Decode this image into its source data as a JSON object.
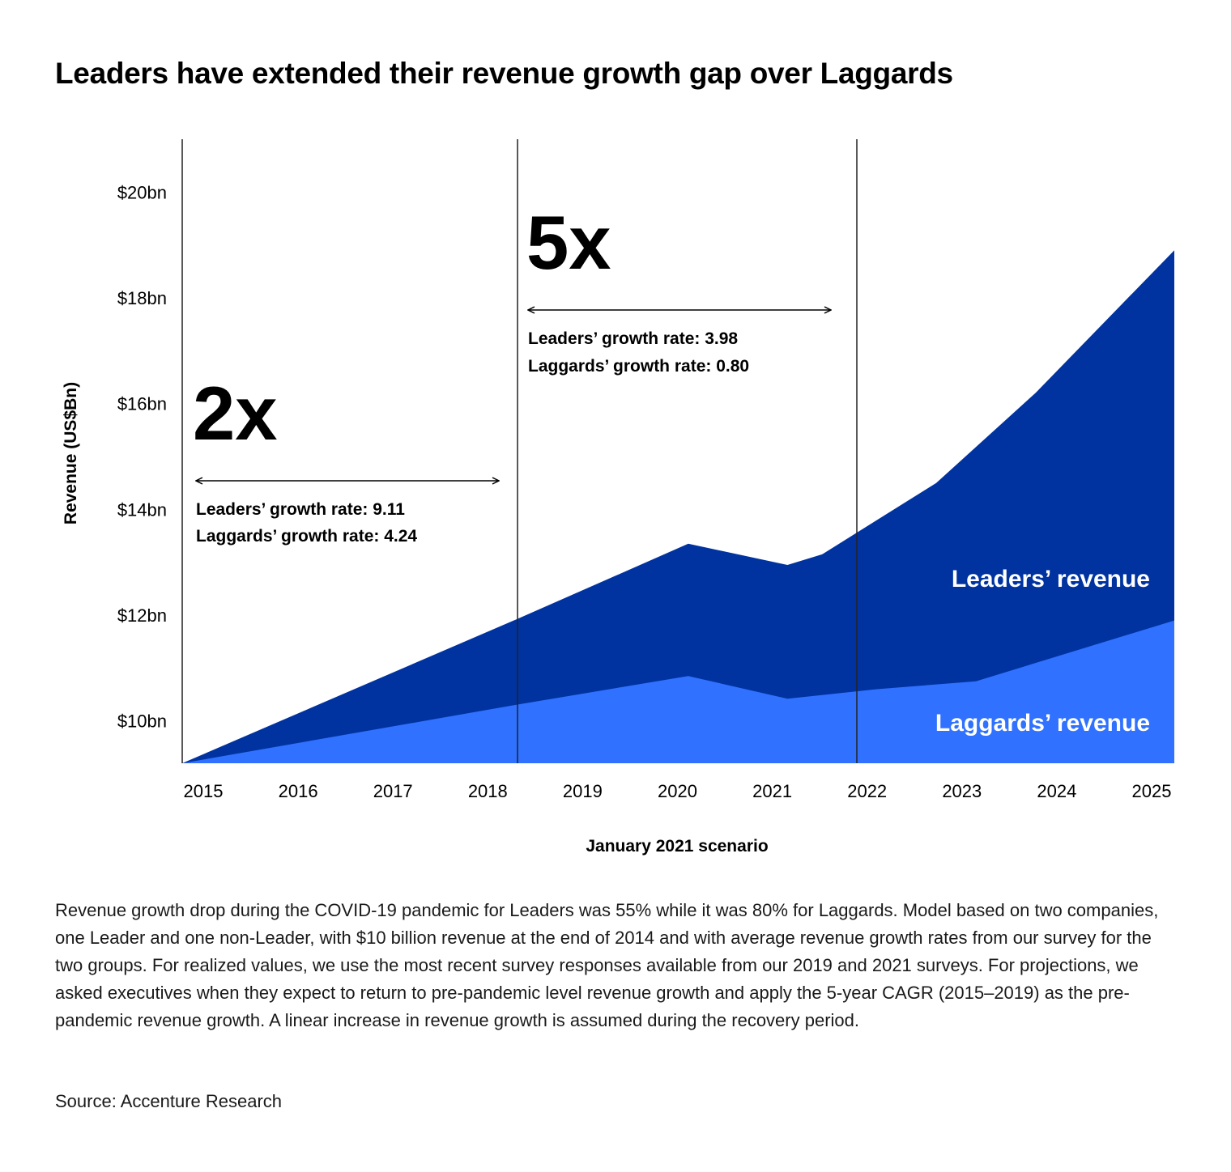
{
  "chart_data": {
    "type": "area",
    "title": "Leaders have extended their revenue growth gap over Laggards",
    "ylabel": "Revenue (US$Bn)",
    "xlabel": "January 2021 scenario",
    "ylim": [
      9.2,
      21
    ],
    "y_ticks": [
      10,
      12,
      14,
      16,
      18,
      20
    ],
    "y_tick_labels": [
      "$10bn",
      "$12bn",
      "$14bn",
      "$16bn",
      "$18bn",
      "$20bn"
    ],
    "x_tick_labels": [
      "2015",
      "2016",
      "2017",
      "2018",
      "2019",
      "2020",
      "2021",
      "2022",
      "2023",
      "2024",
      "2025"
    ],
    "series": [
      {
        "name": "Leaders’ revenue",
        "color": "#0033a0",
        "points": [
          [
            0,
            9.2
          ],
          [
            3.38,
            11.93
          ],
          [
            5.1,
            13.35
          ],
          [
            6.1,
            12.95
          ],
          [
            6.45,
            13.15
          ],
          [
            7.6,
            14.5
          ],
          [
            8.6,
            16.2
          ],
          [
            10.0,
            18.9
          ]
        ]
      },
      {
        "name": "Laggards’ revenue",
        "color": "#3071ff",
        "points": [
          [
            0,
            9.2
          ],
          [
            3.38,
            10.31
          ],
          [
            5.1,
            10.85
          ],
          [
            6.1,
            10.42
          ],
          [
            7.0,
            10.6
          ],
          [
            8.0,
            10.75
          ],
          [
            10.0,
            11.9
          ]
        ]
      }
    ],
    "dividers": [
      3.38,
      6.8
    ],
    "annotations": [
      {
        "multiplier": "2x",
        "leaders_rate": "Leaders’ growth rate: 9.11",
        "laggards_rate": "Laggards’ growth rate: 4.24"
      },
      {
        "multiplier": "5x",
        "leaders_rate": "Leaders’ growth rate: 3.98",
        "laggards_rate": "Laggards’ growth rate: 0.80"
      }
    ]
  },
  "footnote": "Revenue growth drop during the COVID-19 pandemic for Leaders was 55% while it was 80% for Laggards. Model based on two companies, one Leader and one non-Leader, with $10 billion revenue at the end of 2014 and with average revenue growth rates from our survey for the two groups. For realized values, we use the most recent survey responses available from our 2019 and 2021 surveys. For projections, we asked executives when they expect to return to pre-pandemic level revenue growth and apply the 5-year CAGR (2015–2019) as the pre-pandemic revenue growth. A linear increase in revenue growth is assumed during the recovery period.",
  "source": "Source: Accenture Research"
}
